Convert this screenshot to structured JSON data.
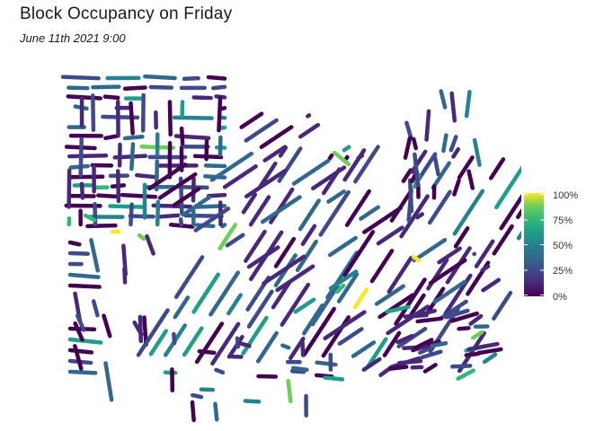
{
  "header": {
    "title": "Block Occupancy on Friday",
    "subtitle": "June 11th 2021 9:00"
  },
  "legend": {
    "labels": [
      "100%",
      "75%",
      "50%",
      "25%",
      "0%"
    ],
    "colors": [
      "#fde725",
      "#5ec962",
      "#21918c",
      "#3b528b",
      "#440154"
    ]
  },
  "chart_data": {
    "type": "map",
    "color_scale": "viridis",
    "value_range": [
      0,
      1
    ]
  }
}
